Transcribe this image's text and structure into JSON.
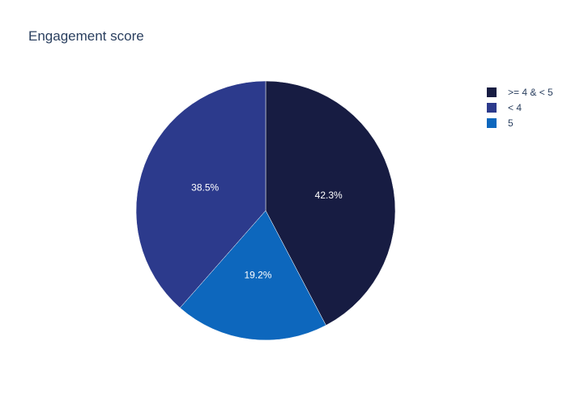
{
  "chart_data": {
    "type": "pie",
    "title": "Engagement score",
    "slices": [
      {
        "label": ">= 4 & < 5",
        "value": 42.3,
        "display": "42.3%",
        "color": "#171c42"
      },
      {
        "label": "5",
        "value": 19.2,
        "display": "19.2%",
        "color": "#0d67bd"
      },
      {
        "label": "< 4",
        "value": 38.5,
        "display": "38.5%",
        "color": "#2c3a8c"
      }
    ],
    "legend": {
      "placement": "top-right",
      "entries": [
        {
          "label": ">= 4 & < 5",
          "color": "#171c42"
        },
        {
          "label": "< 4",
          "color": "#2c3a8c"
        },
        {
          "label": "5",
          "color": "#0d67bd"
        }
      ]
    }
  }
}
